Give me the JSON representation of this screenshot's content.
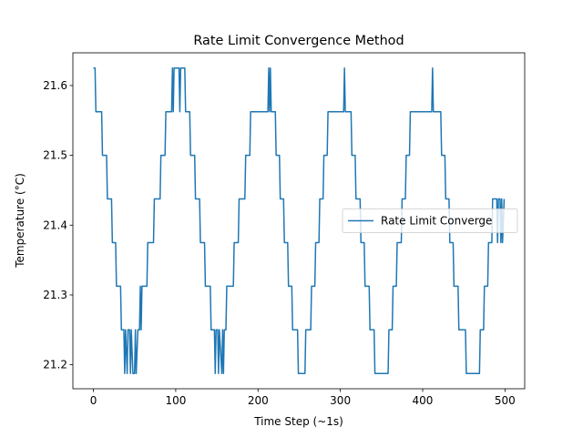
{
  "chart_data": {
    "type": "line",
    "title": "Rate Limit Convergence Method",
    "xlabel": "Time Step (~1s)",
    "ylabel": "Temperature (°C)",
    "xlim": [
      -24.95,
      523.95
    ],
    "ylim": [
      21.165625,
      21.646875
    ],
    "xticks": [
      0,
      100,
      200,
      300,
      400,
      500
    ],
    "yticks": [
      21.2,
      21.3,
      21.4,
      21.5,
      21.6
    ],
    "legend": "center right",
    "grid": false,
    "series": [
      {
        "name": "Rate Limit Converge",
        "color": "#1f77b4",
        "x": [
          0,
          2,
          3,
          10,
          11,
          16,
          17,
          22,
          23,
          27,
          28,
          33,
          34,
          37,
          38,
          39,
          41,
          42,
          44,
          45,
          46,
          48,
          50,
          51,
          52,
          54,
          56,
          57,
          58,
          59,
          65,
          66,
          73,
          74,
          81,
          82,
          87,
          88,
          95,
          96,
          97,
          98,
          104,
          105,
          106,
          111,
          112,
          117,
          118,
          123,
          124,
          129,
          130,
          135,
          136,
          142,
          143,
          147,
          148,
          149,
          151,
          152,
          153,
          156,
          157,
          158,
          159,
          161,
          162,
          170,
          171,
          176,
          177,
          184,
          185,
          190,
          191,
          212,
          213,
          214,
          215,
          216,
          221,
          222,
          226,
          227,
          231,
          232,
          236,
          237,
          241,
          242,
          248,
          249,
          257,
          258,
          264,
          265,
          269,
          270,
          274,
          275,
          279,
          280,
          284,
          285,
          304,
          305,
          306,
          313,
          314,
          318,
          319,
          324,
          325,
          329,
          330,
          335,
          336,
          341,
          342,
          358,
          359,
          363,
          364,
          368,
          369,
          374,
          375,
          379,
          380,
          384,
          385,
          411,
          412,
          413,
          422,
          423,
          427,
          428,
          432,
          433,
          437,
          438,
          443,
          444,
          452,
          453,
          469,
          470,
          474,
          475,
          479,
          480,
          484,
          485,
          490,
          491,
          492,
          494,
          495,
          496,
          497,
          499
        ],
        "values": [
          21.625,
          21.625,
          21.5625,
          21.5625,
          21.5,
          21.5,
          21.4375,
          21.4375,
          21.375,
          21.375,
          21.3125,
          21.3125,
          21.25,
          21.25,
          21.1875,
          21.25,
          21.1875,
          21.25,
          21.25,
          21.1875,
          21.25,
          21.1875,
          21.1875,
          21.25,
          21.1875,
          21.25,
          21.25,
          21.3125,
          21.25,
          21.3125,
          21.3125,
          21.375,
          21.375,
          21.4375,
          21.4375,
          21.5,
          21.5,
          21.5625,
          21.5625,
          21.625,
          21.5625,
          21.625,
          21.625,
          21.5625,
          21.625,
          21.625,
          21.5625,
          21.5625,
          21.5,
          21.5,
          21.4375,
          21.4375,
          21.375,
          21.375,
          21.3125,
          21.3125,
          21.25,
          21.25,
          21.1875,
          21.25,
          21.25,
          21.1875,
          21.25,
          21.1875,
          21.25,
          21.1875,
          21.25,
          21.25,
          21.3125,
          21.3125,
          21.375,
          21.375,
          21.4375,
          21.4375,
          21.5,
          21.5,
          21.5625,
          21.5625,
          21.625,
          21.5625,
          21.625,
          21.5625,
          21.5625,
          21.5,
          21.5,
          21.4375,
          21.4375,
          21.375,
          21.375,
          21.3125,
          21.3125,
          21.25,
          21.25,
          21.1875,
          21.1875,
          21.25,
          21.25,
          21.3125,
          21.3125,
          21.375,
          21.375,
          21.4375,
          21.4375,
          21.5,
          21.5,
          21.5625,
          21.5625,
          21.625,
          21.5625,
          21.5625,
          21.5,
          21.5,
          21.4375,
          21.4375,
          21.375,
          21.375,
          21.3125,
          21.3125,
          21.25,
          21.25,
          21.1875,
          21.1875,
          21.25,
          21.25,
          21.3125,
          21.3125,
          21.375,
          21.375,
          21.4375,
          21.4375,
          21.5,
          21.5,
          21.5625,
          21.5625,
          21.625,
          21.5625,
          21.5625,
          21.5,
          21.5,
          21.4375,
          21.4375,
          21.375,
          21.375,
          21.3125,
          21.3125,
          21.25,
          21.25,
          21.1875,
          21.1875,
          21.25,
          21.25,
          21.3125,
          21.3125,
          21.375,
          21.375,
          21.4375,
          21.4375,
          21.375,
          21.4375,
          21.4375,
          21.375,
          21.4375,
          21.375,
          21.4375
        ]
      }
    ]
  }
}
